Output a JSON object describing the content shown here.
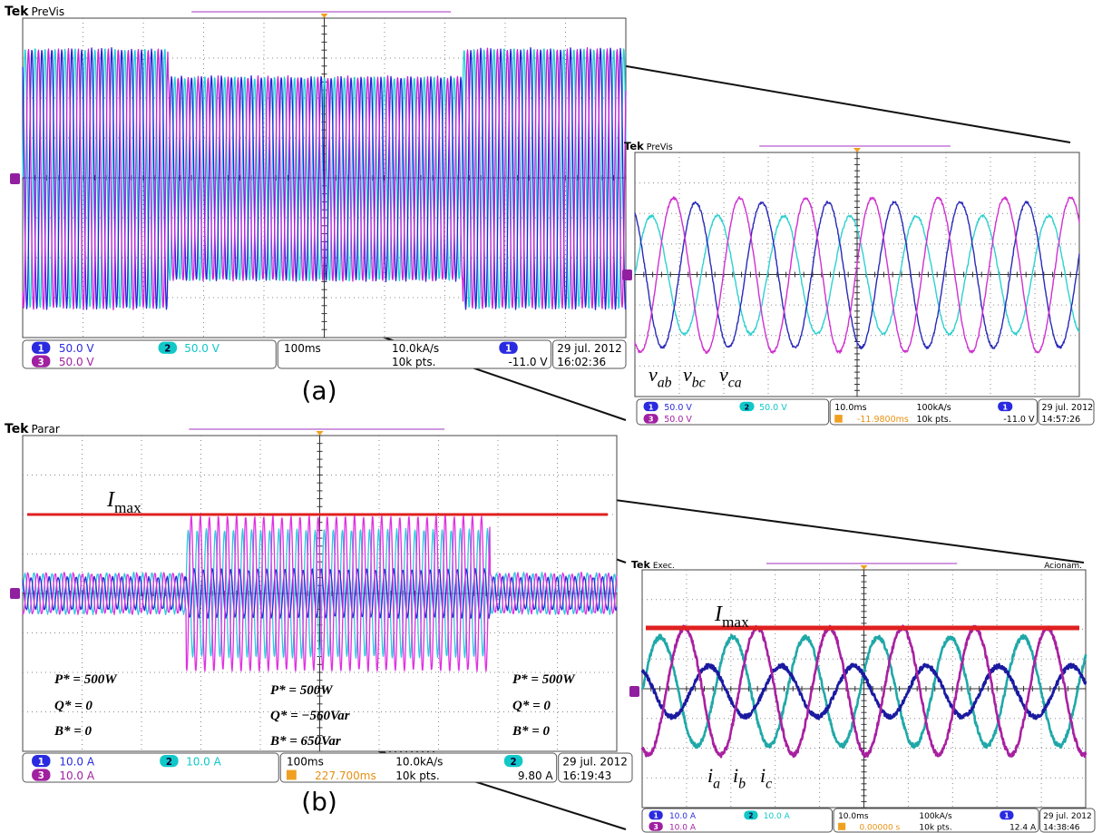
{
  "figure_a": {
    "label": "(a)",
    "main": {
      "brand": "Tek",
      "mode": "PreVis",
      "status": {
        "channels": [
          {
            "id": "1",
            "scale": "50.0 V"
          },
          {
            "id": "2",
            "scale": "50.0 V"
          },
          {
            "id": "3",
            "scale": "50.0 V"
          }
        ],
        "timebase": "100ms",
        "sample_rate": "10.0kA/s",
        "points": "10k pts.",
        "trigger_source": "1",
        "trigger_level": "-11.0 V",
        "date": "29 jul. 2012",
        "time": "16:02:36"
      }
    },
    "zoom": {
      "brand": "Tek",
      "mode": "PreVis",
      "status": {
        "channels": [
          {
            "id": "1",
            "scale": "50.0 V"
          },
          {
            "id": "2",
            "scale": "50.0 V"
          },
          {
            "id": "3",
            "scale": "50.0 V"
          }
        ],
        "timebase": "10.0ms",
        "trigger_delay": "-11.9800ms",
        "sample_rate": "100kA/s",
        "points": "10k pts.",
        "trigger_source": "1",
        "trigger_level": "-11.0 V",
        "date": "29 jul. 2012",
        "time": "14:57:26"
      },
      "signals": [
        {
          "symbol": "v",
          "sub": "ab"
        },
        {
          "symbol": "v",
          "sub": "bc"
        },
        {
          "symbol": "v",
          "sub": "ca"
        }
      ]
    }
  },
  "figure_b": {
    "label": "(b)",
    "main": {
      "brand": "Tek",
      "mode": "Parar",
      "status": {
        "channels": [
          {
            "id": "1",
            "scale": "10.0 A"
          },
          {
            "id": "2",
            "scale": "10.0 A"
          },
          {
            "id": "3",
            "scale": "10.0 A"
          }
        ],
        "timebase": "100ms",
        "trigger_delay": "227.700ms",
        "sample_rate": "10.0kA/s",
        "points": "10k pts.",
        "trigger_source": "2",
        "trigger_level": "9.80 A",
        "date": "29 jul. 2012",
        "time": "16:19:43"
      },
      "limit": {
        "symbol": "I",
        "sub": "max"
      },
      "annotations": [
        [
          "P* = 500W",
          "Q* = 0",
          "B* = 0"
        ],
        [
          "P* = 500W",
          "Q* = −560Var",
          "B* = 650Var"
        ],
        [
          "P* = 500W",
          "Q* = 0",
          "B* = 0"
        ]
      ]
    },
    "zoom": {
      "brand": "Tek",
      "mode": "Exec.",
      "state": "Acionam.",
      "status": {
        "channels": [
          {
            "id": "1",
            "scale": "10.0 A"
          },
          {
            "id": "2",
            "scale": "10.0 A"
          },
          {
            "id": "3",
            "scale": "10.0 A"
          }
        ],
        "timebase": "10.0ms",
        "trigger_delay": "0.00000 s",
        "sample_rate": "100kA/s",
        "points": "10k pts.",
        "trigger_source": "1",
        "trigger_level": "12.4 A",
        "date": "29 jul. 2012",
        "time": "14:38:46"
      },
      "limit": {
        "symbol": "I",
        "sub": "max"
      },
      "signals": [
        {
          "symbol": "i",
          "sub": "a"
        },
        {
          "symbol": "i",
          "sub": "b"
        },
        {
          "symbol": "i",
          "sub": "c"
        }
      ]
    }
  }
}
